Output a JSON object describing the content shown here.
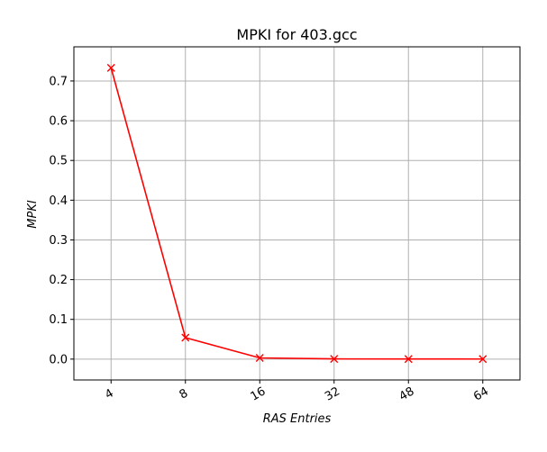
{
  "chart_data": {
    "type": "line",
    "title": "MPKI for 403.gcc",
    "xlabel": "RAS Entries",
    "ylabel": "MPKI",
    "categories": [
      "4",
      "8",
      "16",
      "32",
      "48",
      "64"
    ],
    "series": [
      {
        "values": [
          0.733,
          0.054,
          0.003,
          0.0005,
          0.0003,
          0.0002
        ],
        "color": "#ff0000",
        "marker": "x"
      }
    ],
    "yticks": [
      "0.0",
      "0.1",
      "0.2",
      "0.3",
      "0.4",
      "0.5",
      "0.6",
      "0.7"
    ],
    "ylim": [
      -0.0525,
      0.786
    ],
    "grid": true,
    "xtick_rotation": -30
  }
}
